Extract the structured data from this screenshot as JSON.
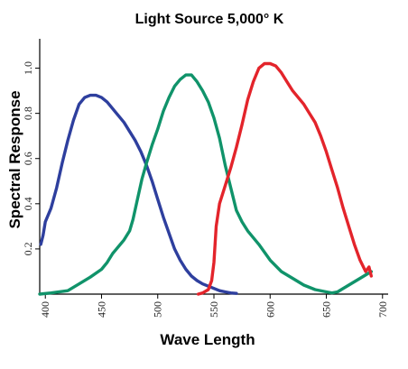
{
  "chart_data": {
    "type": "line",
    "title": "Light Source 5,000° K",
    "xlabel": "Wave Length",
    "ylabel": "Spectral Response",
    "xlim": [
      395,
      705
    ],
    "ylim": [
      0,
      1.13
    ],
    "x_ticks": [
      400,
      450,
      500,
      550,
      600,
      650,
      700
    ],
    "x_tick_labels": [
      "400",
      "450",
      "500",
      "550",
      "600",
      "650",
      "700"
    ],
    "y_ticks": [
      0.2,
      0.4,
      0.6,
      0.8,
      1.0
    ],
    "y_tick_labels": [
      "0.2",
      "0.4",
      "0.6",
      "0.8",
      "1.0"
    ],
    "grid": false,
    "series": [
      {
        "color": "#2e3f9e",
        "x": [
          396,
          398,
          400,
          405,
          410,
          415,
          420,
          425,
          430,
          435,
          440,
          445,
          450,
          455,
          460,
          465,
          470,
          475,
          480,
          485,
          490,
          495,
          500,
          505,
          510,
          515,
          520,
          525,
          530,
          535,
          540,
          545,
          550,
          555,
          560,
          565,
          570
        ],
        "y": [
          0.22,
          0.26,
          0.32,
          0.38,
          0.47,
          0.58,
          0.68,
          0.77,
          0.84,
          0.87,
          0.88,
          0.88,
          0.87,
          0.85,
          0.82,
          0.79,
          0.76,
          0.72,
          0.68,
          0.63,
          0.57,
          0.5,
          0.42,
          0.34,
          0.27,
          0.2,
          0.15,
          0.11,
          0.08,
          0.06,
          0.045,
          0.035,
          0.025,
          0.015,
          0.01,
          0.005,
          0.003
        ]
      },
      {
        "color": "#10936a",
        "x": [
          395,
          405,
          420,
          430,
          440,
          450,
          455,
          460,
          465,
          470,
          475,
          478,
          482,
          486,
          490,
          495,
          500,
          505,
          510,
          515,
          520,
          525,
          530,
          535,
          540,
          545,
          550,
          555,
          560,
          565,
          570,
          575,
          580,
          590,
          600,
          610,
          620,
          630,
          640,
          650,
          655,
          660,
          670,
          680,
          690
        ],
        "y": [
          0.0,
          0.005,
          0.015,
          0.045,
          0.075,
          0.11,
          0.14,
          0.18,
          0.21,
          0.24,
          0.28,
          0.33,
          0.42,
          0.51,
          0.58,
          0.66,
          0.73,
          0.81,
          0.87,
          0.92,
          0.95,
          0.97,
          0.97,
          0.94,
          0.9,
          0.85,
          0.78,
          0.69,
          0.57,
          0.47,
          0.37,
          0.32,
          0.28,
          0.22,
          0.15,
          0.1,
          0.07,
          0.04,
          0.02,
          0.01,
          0.005,
          0.01,
          0.04,
          0.07,
          0.1
        ]
      },
      {
        "color": "#e3242b",
        "x": [
          536,
          540,
          545,
          548,
          550,
          552,
          555,
          560,
          565,
          570,
          575,
          580,
          585,
          590,
          595,
          600,
          605,
          610,
          615,
          620,
          625,
          630,
          635,
          640,
          645,
          650,
          655,
          660,
          665,
          670,
          675,
          680,
          685,
          688,
          690
        ],
        "y": [
          0.0,
          0.005,
          0.02,
          0.06,
          0.14,
          0.3,
          0.4,
          0.48,
          0.56,
          0.65,
          0.75,
          0.86,
          0.94,
          1.0,
          1.02,
          1.02,
          1.01,
          0.98,
          0.94,
          0.9,
          0.87,
          0.84,
          0.8,
          0.76,
          0.7,
          0.63,
          0.55,
          0.47,
          0.38,
          0.3,
          0.22,
          0.15,
          0.1,
          0.12,
          0.08
        ]
      }
    ]
  }
}
